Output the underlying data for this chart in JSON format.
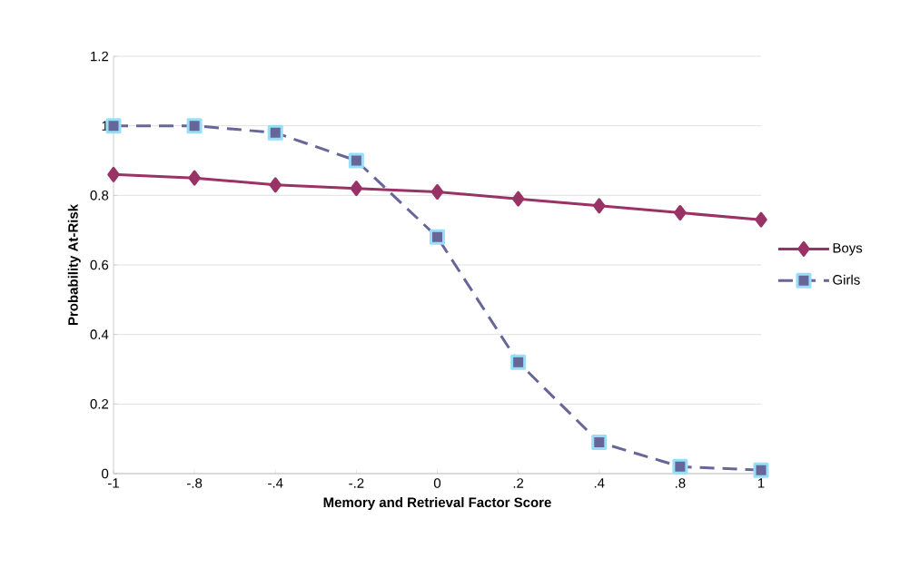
{
  "chart_data": {
    "type": "line",
    "xlabel": "Memory and Retrieval Factor Score",
    "ylabel": "Probability At-Risk",
    "categories": [
      "-1",
      "-.8",
      "-.4",
      "-.2",
      "0",
      ".2",
      ".4",
      ".8",
      "1"
    ],
    "series": [
      {
        "name": "Boys",
        "color": "#993366",
        "marker": "diamond",
        "line_style": "solid",
        "values": [
          0.86,
          0.85,
          0.83,
          0.82,
          0.81,
          0.79,
          0.77,
          0.75,
          0.73
        ]
      },
      {
        "name": "Girls",
        "color": "#666699",
        "marker": "square",
        "line_style": "dashed",
        "values": [
          1.0,
          1.0,
          0.98,
          0.9,
          0.68,
          0.32,
          0.09,
          0.02,
          0.01
        ]
      }
    ],
    "ylim": [
      0,
      1.2
    ],
    "yticks": [
      0,
      0.2,
      0.4,
      0.6,
      0.8,
      1,
      1.2
    ],
    "grid": "y",
    "legend": "right"
  }
}
